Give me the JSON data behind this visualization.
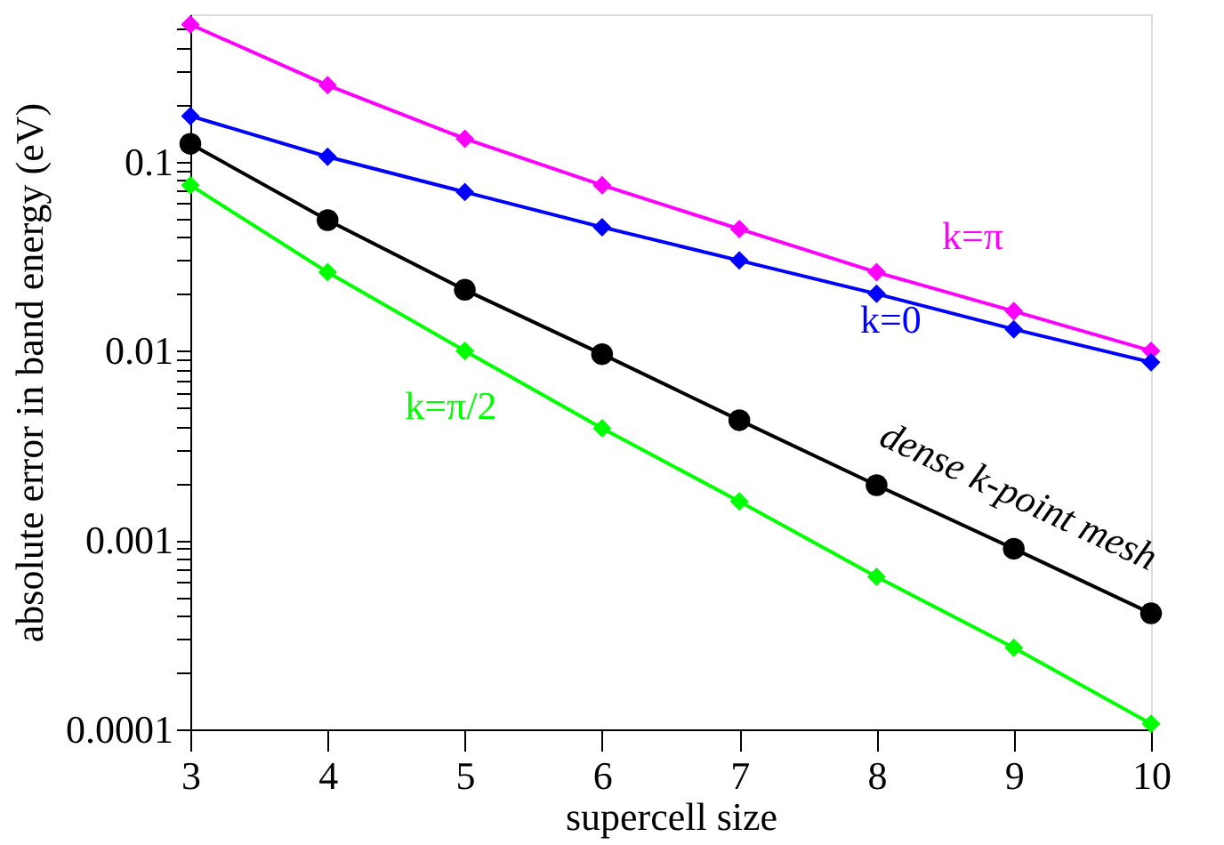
{
  "chart_data": {
    "type": "line",
    "xlabel": "supercell size",
    "ylabel": "absolute error in band energy (eV)",
    "x": [
      3,
      4,
      5,
      6,
      7,
      8,
      9,
      10
    ],
    "series": [
      {
        "name": "k=π",
        "color": "#ff00ff",
        "marker": "diamond",
        "values": [
          0.53,
          0.253,
          0.132,
          0.075,
          0.044,
          0.026,
          0.0162,
          0.01
        ]
      },
      {
        "name": "k=0",
        "color": "#0000ff",
        "marker": "diamond",
        "values": [
          0.174,
          0.106,
          0.069,
          0.045,
          0.03,
          0.02,
          0.013,
          0.0087
        ]
      },
      {
        "name": "dense k-point mesh",
        "color": "#000000",
        "marker": "circle",
        "values": [
          0.124,
          0.049,
          0.021,
          0.0096,
          0.0043,
          0.00195,
          0.0009,
          0.00041
        ]
      },
      {
        "name": "k=π/2",
        "color": "#00ff00",
        "marker": "diamond",
        "values": [
          0.075,
          0.026,
          0.01,
          0.0039,
          0.0016,
          0.00064,
          0.00027,
          0.000107
        ]
      }
    ],
    "log": "y",
    "grid": false,
    "line_style": "solid",
    "xlim": [
      3,
      10
    ],
    "xticks": [
      3,
      4,
      5,
      6,
      7,
      8,
      9,
      10
    ],
    "ylim": [
      0.0001,
      0.6
    ],
    "yticks": [
      0.0001,
      {
        "value": 0.0002,
        "label": null
      },
      {
        "value": 0.0003,
        "label": null
      },
      {
        "value": 0.0004,
        "label": null
      },
      {
        "value": 0.0005,
        "label": null
      },
      {
        "value": 0.0006,
        "label": null
      },
      {
        "value": 0.0007,
        "label": null
      },
      {
        "value": 0.0008,
        "label": null
      },
      {
        "value": 0.0009,
        "label": null
      },
      0.001,
      {
        "value": 0.002,
        "label": null
      },
      {
        "value": 0.003,
        "label": null
      },
      {
        "value": 0.004,
        "label": null
      },
      {
        "value": 0.005,
        "label": null
      },
      {
        "value": 0.006,
        "label": null
      },
      {
        "value": 0.007,
        "label": null
      },
      {
        "value": 0.008,
        "label": null
      },
      {
        "value": 0.009,
        "label": null
      },
      0.01,
      {
        "value": 0.02,
        "label": null
      },
      {
        "value": 0.03,
        "label": null
      },
      {
        "value": 0.04,
        "label": null
      },
      {
        "value": 0.05,
        "label": null
      },
      {
        "value": 0.06,
        "label": null
      },
      {
        "value": 0.07,
        "label": null
      },
      {
        "value": 0.08,
        "label": null
      },
      {
        "value": 0.09,
        "label": null
      },
      0.1,
      {
        "value": 0.2,
        "label": null
      },
      {
        "value": 0.3,
        "label": null
      },
      {
        "value": 0.4,
        "label": null
      },
      {
        "value": 0.5,
        "label": null
      }
    ]
  }
}
